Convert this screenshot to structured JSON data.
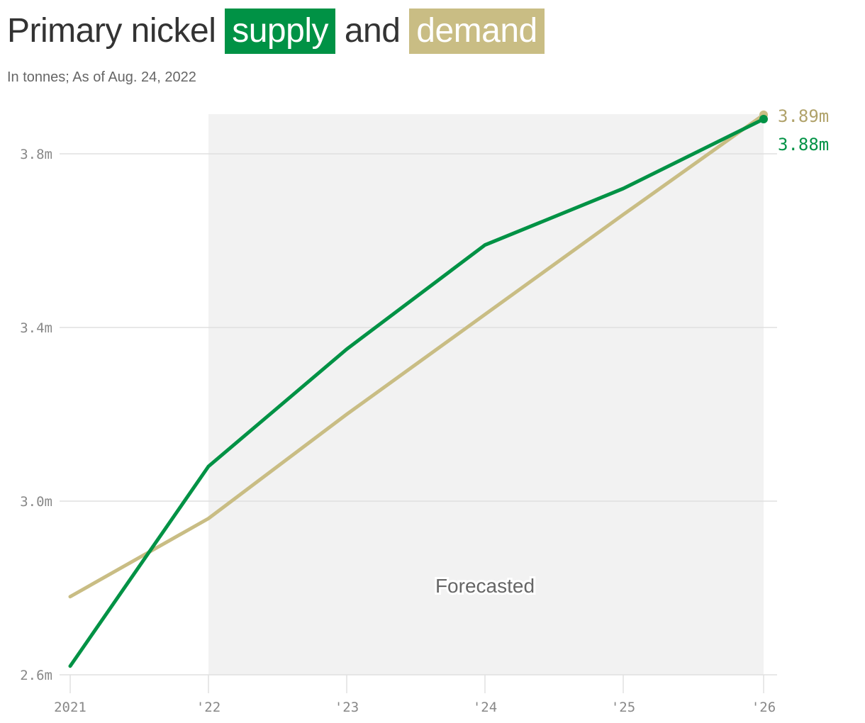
{
  "header": {
    "title_prefix": "Primary nickel",
    "title_word1": "supply",
    "title_mid": "and",
    "title_word2": "demand",
    "subtitle": "In tonnes; As of Aug. 24, 2022"
  },
  "colors": {
    "supply": "#009245",
    "demand": "#C9BD84",
    "demand_label": "#B0A26A",
    "forecast_bg": "#F2F2F2"
  },
  "annotation": "Forecasted",
  "end_labels": {
    "demand": "3.89m",
    "supply": "3.88m"
  },
  "chart_data": {
    "type": "line",
    "title": "Primary nickel supply and demand",
    "subtitle": "In tonnes; As of Aug. 24, 2022",
    "xlabel": "",
    "ylabel": "",
    "categories": [
      "2021",
      "'22",
      "'23",
      "'24",
      "'25",
      "'26"
    ],
    "series": [
      {
        "name": "supply",
        "values": [
          2.62,
          3.08,
          3.35,
          3.59,
          3.72,
          3.88
        ]
      },
      {
        "name": "demand",
        "values": [
          2.78,
          2.96,
          3.2,
          3.43,
          3.66,
          3.89
        ]
      }
    ],
    "unit": "million tonnes",
    "y_ticks": [
      "2.6m",
      "3.0m",
      "3.4m",
      "3.8m"
    ],
    "ylim": [
      2.6,
      3.9
    ],
    "grid": true,
    "shaded_region": {
      "from": "'22",
      "to": "'26",
      "label": "Forecasted"
    }
  }
}
